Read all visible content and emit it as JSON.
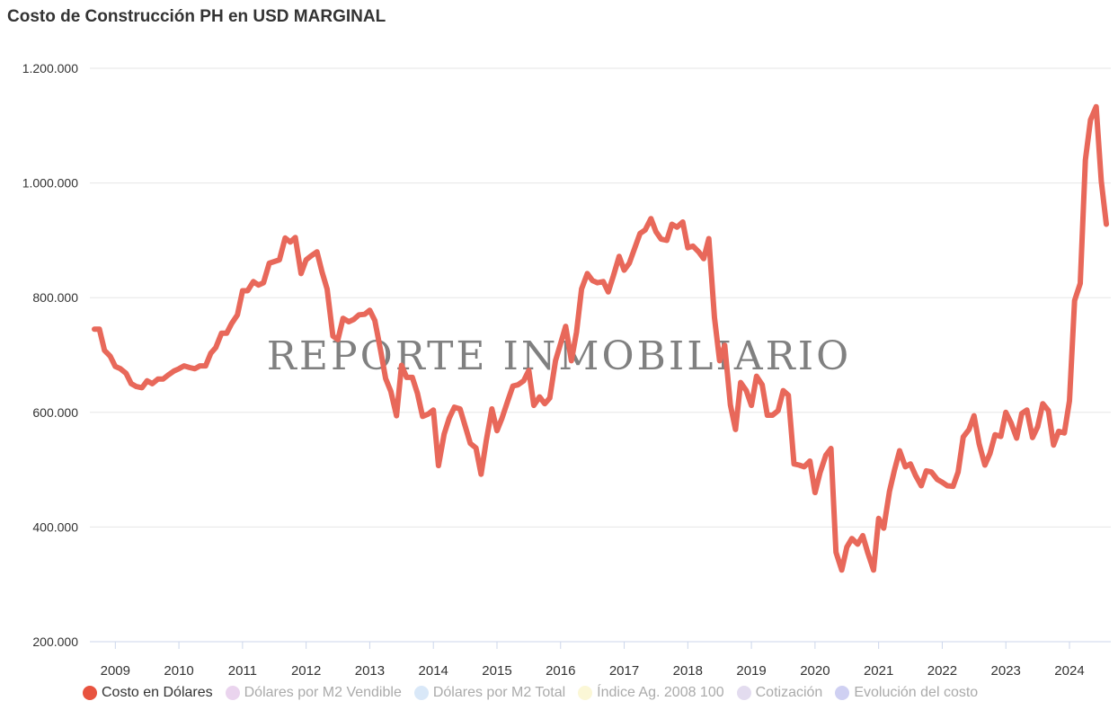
{
  "chart_data": {
    "type": "line",
    "title": "Costo de Construcción PH en USD MARGINAL",
    "watermark": "REPORTE INMOBILIARIO",
    "ylim": [
      200000,
      1200000
    ],
    "y_ticks": [
      {
        "value": 200000,
        "label": "200.000"
      },
      {
        "value": 400000,
        "label": "400.000"
      },
      {
        "value": 600000,
        "label": "600.000"
      },
      {
        "value": 800000,
        "label": "800.000"
      },
      {
        "value": 1000000,
        "label": "1.000.000"
      },
      {
        "value": 1200000,
        "label": "1.200.000"
      }
    ],
    "x_range": [
      2008.6,
      2024.65
    ],
    "x_ticks": [
      {
        "value": 2009,
        "label": "2009"
      },
      {
        "value": 2010,
        "label": "2010"
      },
      {
        "value": 2011,
        "label": "2011"
      },
      {
        "value": 2012,
        "label": "2012"
      },
      {
        "value": 2013,
        "label": "2013"
      },
      {
        "value": 2014,
        "label": "2014"
      },
      {
        "value": 2015,
        "label": "2015"
      },
      {
        "value": 2016,
        "label": "2016"
      },
      {
        "value": 2017,
        "label": "2017"
      },
      {
        "value": 2018,
        "label": "2018"
      },
      {
        "value": 2019,
        "label": "2019"
      },
      {
        "value": 2020,
        "label": "2020"
      },
      {
        "value": 2021,
        "label": "2021"
      },
      {
        "value": 2022,
        "label": "2022"
      },
      {
        "value": 2023,
        "label": "2023"
      },
      {
        "value": 2024,
        "label": "2024"
      }
    ],
    "grid": true,
    "legend_position": "bottom",
    "series": [
      {
        "name": "Costo en Dólares",
        "color": "#e8685a",
        "x": [
          2008.67,
          2008.75,
          2008.83,
          2008.92,
          2009.0,
          2009.08,
          2009.17,
          2009.25,
          2009.33,
          2009.42,
          2009.5,
          2009.58,
          2009.67,
          2009.75,
          2009.83,
          2009.92,
          2010.0,
          2010.08,
          2010.17,
          2010.25,
          2010.33,
          2010.42,
          2010.5,
          2010.58,
          2010.67,
          2010.75,
          2010.83,
          2010.92,
          2011.0,
          2011.08,
          2011.17,
          2011.25,
          2011.33,
          2011.42,
          2011.5,
          2011.58,
          2011.67,
          2011.75,
          2011.83,
          2011.92,
          2012.0,
          2012.08,
          2012.17,
          2012.25,
          2012.33,
          2012.42,
          2012.5,
          2012.58,
          2012.67,
          2012.75,
          2012.83,
          2012.92,
          2013.0,
          2013.08,
          2013.17,
          2013.25,
          2013.33,
          2013.42,
          2013.5,
          2013.58,
          2013.67,
          2013.75,
          2013.83,
          2013.92,
          2014.0,
          2014.08,
          2014.17,
          2014.25,
          2014.33,
          2014.42,
          2014.5,
          2014.58,
          2014.67,
          2014.75,
          2014.83,
          2014.92,
          2015.0,
          2015.08,
          2015.17,
          2015.25,
          2015.33,
          2015.42,
          2015.5,
          2015.58,
          2015.67,
          2015.75,
          2015.83,
          2015.92,
          2016.0,
          2016.08,
          2016.17,
          2016.25,
          2016.33,
          2016.42,
          2016.5,
          2016.58,
          2016.67,
          2016.75,
          2016.83,
          2016.92,
          2017.0,
          2017.08,
          2017.17,
          2017.25,
          2017.33,
          2017.42,
          2017.5,
          2017.58,
          2017.67,
          2017.75,
          2017.83,
          2017.92,
          2018.0,
          2018.08,
          2018.17,
          2018.25,
          2018.33,
          2018.42,
          2018.5,
          2018.58,
          2018.67,
          2018.75,
          2018.83,
          2018.92,
          2019.0,
          2019.08,
          2019.17,
          2019.25,
          2019.33,
          2019.42,
          2019.5,
          2019.58,
          2019.67,
          2019.75,
          2019.83,
          2019.92,
          2020.0,
          2020.08,
          2020.17,
          2020.25,
          2020.33,
          2020.42,
          2020.5,
          2020.58,
          2020.67,
          2020.75,
          2020.83,
          2020.92,
          2021.0,
          2021.08,
          2021.17,
          2021.25,
          2021.33,
          2021.42,
          2021.5,
          2021.58,
          2021.67,
          2021.75,
          2021.83,
          2021.92,
          2022.0,
          2022.08,
          2022.17,
          2022.25,
          2022.33,
          2022.42,
          2022.5,
          2022.58,
          2022.67,
          2022.75,
          2022.83,
          2022.92,
          2023.0,
          2023.08,
          2023.17,
          2023.25,
          2023.33,
          2023.42,
          2023.5,
          2023.58,
          2023.67,
          2023.75,
          2023.83,
          2023.92,
          2024.0,
          2024.08,
          2024.17,
          2024.25,
          2024.33,
          2024.42,
          2024.5,
          2024.58
        ],
        "values": [
          745000,
          745000,
          708000,
          698000,
          680000,
          676000,
          668000,
          650000,
          645000,
          643000,
          655000,
          650000,
          658000,
          658000,
          665000,
          672000,
          676000,
          681000,
          678000,
          676000,
          681000,
          681000,
          703000,
          713000,
          738000,
          738000,
          755000,
          770000,
          812000,
          812000,
          828000,
          822000,
          826000,
          860000,
          863000,
          866000,
          904000,
          897000,
          905000,
          842000,
          866000,
          873000,
          880000,
          845000,
          815000,
          733000,
          727000,
          764000,
          758000,
          762000,
          770000,
          771000,
          778000,
          760000,
          708000,
          659000,
          637000,
          594000,
          682000,
          661000,
          661000,
          633000,
          593000,
          597000,
          604000,
          507000,
          562000,
          590000,
          609000,
          606000,
          576000,
          546000,
          538000,
          492000,
          550000,
          606000,
          568000,
          590000,
          620000,
          646000,
          648000,
          655000,
          673000,
          612000,
          627000,
          615000,
          625000,
          690000,
          720000,
          750000,
          690000,
          740000,
          815000,
          842000,
          830000,
          826000,
          828000,
          810000,
          838000,
          872000,
          848000,
          860000,
          888000,
          912000,
          918000,
          938000,
          915000,
          902000,
          900000,
          928000,
          923000,
          932000,
          887000,
          890000,
          880000,
          868000,
          903000,
          765000,
          690000,
          717000,
          613000,
          570000,
          652000,
          638000,
          612000,
          663000,
          648000,
          595000,
          595000,
          603000,
          638000,
          630000,
          510000,
          508000,
          505000,
          515000,
          460000,
          495000,
          525000,
          537000,
          356000,
          325000,
          365000,
          380000,
          370000,
          385000,
          355000,
          325000,
          415000,
          398000,
          462000,
          500000,
          533000,
          505000,
          510000,
          490000,
          472000,
          498000,
          496000,
          483000,
          478000,
          472000,
          471000,
          496000,
          557000,
          570000,
          594000,
          545000,
          508000,
          528000,
          561000,
          558000,
          600000,
          582000,
          555000,
          598000,
          604000,
          556000,
          575000,
          615000,
          603000,
          543000,
          567000,
          564000,
          620000,
          795000,
          825000,
          1040000,
          1110000,
          1133000,
          1003000,
          928000
        ]
      }
    ],
    "legend": [
      {
        "name": "Costo en Dólares",
        "color": "#e8533f",
        "active": true
      },
      {
        "name": "Dólares por M2 Vendible",
        "color": "#ead4ee",
        "active": false
      },
      {
        "name": "Dólares por M2 Total",
        "color": "#d9e8f8",
        "active": false
      },
      {
        "name": "Índice Ag. 2008 100",
        "color": "#fbf7d6",
        "active": false
      },
      {
        "name": "Cotización",
        "color": "#e3dcef",
        "active": false
      },
      {
        "name": "Evolución del costo",
        "color": "#cfd0f2",
        "active": false
      }
    ]
  }
}
